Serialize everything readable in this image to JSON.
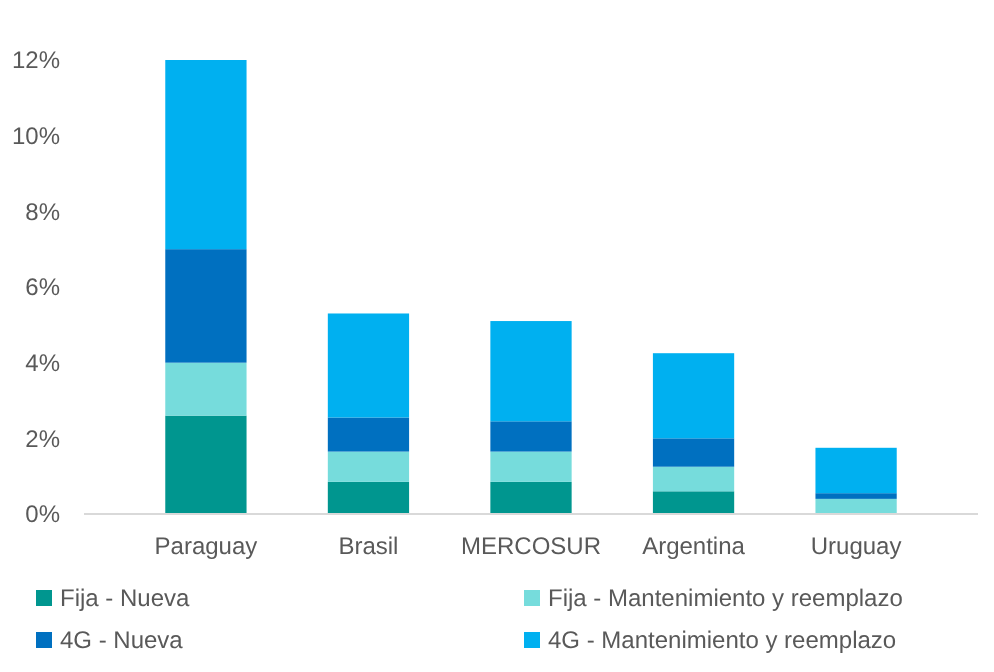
{
  "chart_data": {
    "type": "bar",
    "stacked": true,
    "categories": [
      "Paraguay",
      "Brasil",
      "MERCOSUR",
      "Argentina",
      "Uruguay"
    ],
    "series": [
      {
        "name": "Fija - Nueva",
        "color": "#00968f",
        "values": [
          2.6,
          0.85,
          0.85,
          0.6,
          0
        ]
      },
      {
        "name": "Fija - Mantenimiento y reemplazo",
        "color": "#76dcdc",
        "values": [
          1.4,
          0.8,
          0.8,
          0.65,
          0.4
        ]
      },
      {
        "name": "4G - Nueva",
        "color": "#0070c0",
        "values": [
          3.0,
          0.9,
          0.8,
          0.75,
          0.15
        ]
      },
      {
        "name": "4G - Mantenimiento y reemplazo",
        "color": "#00b0f0",
        "values": [
          5.0,
          2.75,
          2.65,
          2.25,
          1.2
        ]
      }
    ],
    "ylim": [
      0,
      12
    ],
    "yticks": [
      {
        "value": 0,
        "label": "0%"
      },
      {
        "value": 2,
        "label": "2%"
      },
      {
        "value": 4,
        "label": "4%"
      },
      {
        "value": 6,
        "label": "6%"
      },
      {
        "value": 8,
        "label": "8%"
      },
      {
        "value": 10,
        "label": "10%"
      },
      {
        "value": 12,
        "label": "12%"
      }
    ],
    "grid": false,
    "legend": "bottom"
  }
}
